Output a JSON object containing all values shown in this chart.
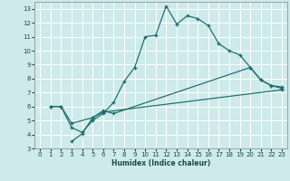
{
  "xlabel": "Humidex (Indice chaleur)",
  "bg_color": "#ceeaea",
  "grid_color": "#ffffff",
  "line_color": "#1a6b6b",
  "xlim": [
    -0.5,
    23.5
  ],
  "ylim": [
    3,
    13.5
  ],
  "xticks": [
    0,
    1,
    2,
    3,
    4,
    5,
    6,
    7,
    8,
    9,
    10,
    11,
    12,
    13,
    14,
    15,
    16,
    17,
    18,
    19,
    20,
    21,
    22,
    23
  ],
  "yticks": [
    3,
    4,
    5,
    6,
    7,
    8,
    9,
    10,
    11,
    12,
    13
  ],
  "lines": [
    {
      "x": [
        1,
        2,
        3,
        4,
        5,
        6,
        7,
        8,
        9,
        10,
        11,
        12,
        13,
        14,
        15,
        16,
        17,
        18,
        19,
        20,
        21,
        22,
        23
      ],
      "y": [
        6.0,
        6.0,
        4.5,
        4.15,
        5.0,
        5.5,
        6.3,
        7.8,
        8.8,
        11.0,
        11.1,
        13.2,
        11.9,
        12.5,
        12.3,
        11.8,
        10.5,
        10.0,
        9.7,
        8.8,
        7.9,
        7.5,
        7.4
      ]
    },
    {
      "x": [
        1,
        2,
        3,
        5,
        6,
        7,
        20,
        21,
        22,
        23
      ],
      "y": [
        6.0,
        6.0,
        4.8,
        5.2,
        5.7,
        5.5,
        8.8,
        7.9,
        7.5,
        7.3
      ]
    },
    {
      "x": [
        3,
        4,
        5,
        6,
        23
      ],
      "y": [
        3.5,
        4.05,
        5.2,
        5.6,
        7.2
      ]
    }
  ]
}
